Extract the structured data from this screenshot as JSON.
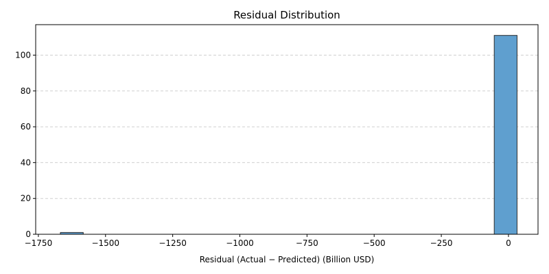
{
  "chart_data": {
    "type": "bar",
    "subtype": "histogram",
    "title": "Residual Distribution",
    "xlabel": "Residual (Actual − Predicted) (Billion USD)",
    "ylabel": "",
    "xlim": [
      -1760,
      110
    ],
    "ylim": [
      0,
      117
    ],
    "x_ticks": [
      -1750,
      -1500,
      -1250,
      -1000,
      -750,
      -500,
      -250,
      0
    ],
    "x_tick_labels": [
      "−1750",
      "−1500",
      "−1250",
      "−1000",
      "−750",
      "−500",
      "−250",
      "0"
    ],
    "y_ticks": [
      0,
      20,
      40,
      60,
      80,
      100
    ],
    "y_tick_labels": [
      "0",
      "20",
      "40",
      "60",
      "80",
      "100"
    ],
    "grid": "y-dashed",
    "legend": "none",
    "bins": [
      {
        "start": -1668,
        "end": -1583,
        "count": 1
      },
      {
        "start": -1583,
        "end": -1498,
        "count": 0
      },
      {
        "start": -1498,
        "end": -1413,
        "count": 0
      },
      {
        "start": -1413,
        "end": -1328,
        "count": 0
      },
      {
        "start": -1328,
        "end": -1243,
        "count": 0
      },
      {
        "start": -1243,
        "end": -1158,
        "count": 0
      },
      {
        "start": -1158,
        "end": -1073,
        "count": 0
      },
      {
        "start": -1073,
        "end": -988,
        "count": 0
      },
      {
        "start": -988,
        "end": -903,
        "count": 0
      },
      {
        "start": -903,
        "end": -818,
        "count": 0
      },
      {
        "start": -818,
        "end": -733,
        "count": 0
      },
      {
        "start": -733,
        "end": -648,
        "count": 0
      },
      {
        "start": -648,
        "end": -563,
        "count": 0
      },
      {
        "start": -563,
        "end": -478,
        "count": 0
      },
      {
        "start": -478,
        "end": -393,
        "count": 0
      },
      {
        "start": -393,
        "end": -308,
        "count": 0
      },
      {
        "start": -308,
        "end": -223,
        "count": 0
      },
      {
        "start": -223,
        "end": -138,
        "count": 0
      },
      {
        "start": -138,
        "end": -53,
        "count": 0
      },
      {
        "start": -53,
        "end": 32,
        "count": 111
      }
    ],
    "colors": {
      "bar_fill": "#5f9fcf",
      "bar_edge": "#2b2b2b",
      "grid": "#cfcfcf"
    }
  }
}
